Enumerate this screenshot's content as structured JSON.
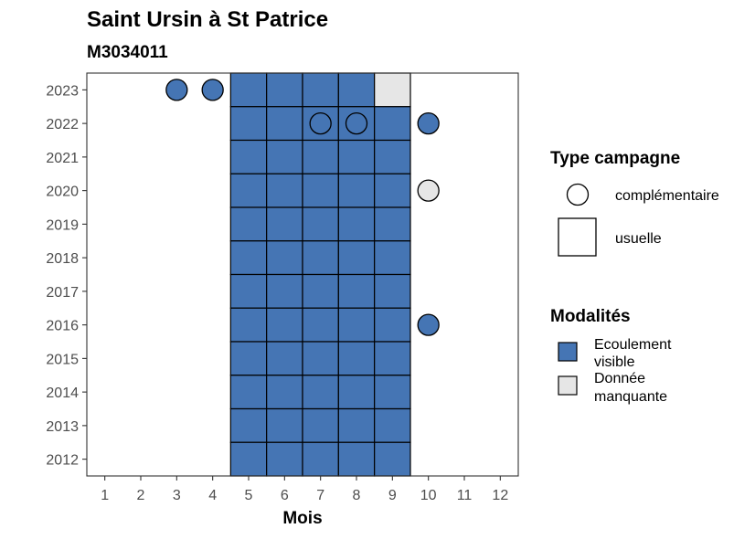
{
  "chart_data": {
    "type": "heatmap",
    "title": "Saint Ursin à St Patrice",
    "subtitle": "M3034011",
    "xlabel": "Mois",
    "ylabel": "",
    "x": [
      1,
      2,
      3,
      4,
      5,
      6,
      7,
      8,
      9,
      10,
      11,
      12
    ],
    "y": [
      2012,
      2013,
      2014,
      2015,
      2016,
      2017,
      2018,
      2019,
      2020,
      2021,
      2022,
      2023
    ],
    "xlim": [
      0.5,
      12.5
    ],
    "ylim": [
      2011.5,
      2023.5
    ],
    "grid": false,
    "legend_position": "right",
    "modalites": [
      {
        "key": "ecoulement",
        "label_lines": [
          "Ecoulement",
          "visible"
        ],
        "color": "#4575b4"
      },
      {
        "key": "manquante",
        "label_lines": [
          "Donnée",
          "manquante"
        ],
        "color": "#e6e6e6"
      }
    ],
    "type_campagne": [
      {
        "key": "complementaire",
        "label": "complémentaire",
        "shape": "circle"
      },
      {
        "key": "usuelle",
        "label": "usuelle",
        "shape": "square"
      }
    ],
    "legend_titles": {
      "type_campagne": "Type campagne",
      "modalites": "Modalités"
    },
    "observations": [
      {
        "year": 2023,
        "month": 3,
        "campagne": "complementaire",
        "modalite": "ecoulement"
      },
      {
        "year": 2023,
        "month": 4,
        "campagne": "complementaire",
        "modalite": "ecoulement"
      },
      {
        "year": 2023,
        "month": 5,
        "campagne": "usuelle",
        "modalite": "ecoulement"
      },
      {
        "year": 2023,
        "month": 6,
        "campagne": "usuelle",
        "modalite": "ecoulement"
      },
      {
        "year": 2023,
        "month": 7,
        "campagne": "usuelle",
        "modalite": "ecoulement"
      },
      {
        "year": 2023,
        "month": 8,
        "campagne": "usuelle",
        "modalite": "ecoulement"
      },
      {
        "year": 2023,
        "month": 9,
        "campagne": "usuelle",
        "modalite": "manquante"
      },
      {
        "year": 2022,
        "month": 5,
        "campagne": "usuelle",
        "modalite": "ecoulement"
      },
      {
        "year": 2022,
        "month": 6,
        "campagne": "usuelle",
        "modalite": "ecoulement"
      },
      {
        "year": 2022,
        "month": 7,
        "campagne": "usuelle",
        "modalite": "ecoulement"
      },
      {
        "year": 2022,
        "month": 8,
        "campagne": "usuelle",
        "modalite": "ecoulement"
      },
      {
        "year": 2022,
        "month": 9,
        "campagne": "usuelle",
        "modalite": "ecoulement"
      },
      {
        "year": 2022,
        "month": 7,
        "campagne": "complementaire",
        "modalite": "ecoulement"
      },
      {
        "year": 2022,
        "month": 8,
        "campagne": "complementaire",
        "modalite": "ecoulement"
      },
      {
        "year": 2022,
        "month": 10,
        "campagne": "complementaire",
        "modalite": "ecoulement"
      },
      {
        "year": 2021,
        "month": 5,
        "campagne": "usuelle",
        "modalite": "ecoulement"
      },
      {
        "year": 2021,
        "month": 6,
        "campagne": "usuelle",
        "modalite": "ecoulement"
      },
      {
        "year": 2021,
        "month": 7,
        "campagne": "usuelle",
        "modalite": "ecoulement"
      },
      {
        "year": 2021,
        "month": 8,
        "campagne": "usuelle",
        "modalite": "ecoulement"
      },
      {
        "year": 2021,
        "month": 9,
        "campagne": "usuelle",
        "modalite": "ecoulement"
      },
      {
        "year": 2020,
        "month": 5,
        "campagne": "usuelle",
        "modalite": "ecoulement"
      },
      {
        "year": 2020,
        "month": 6,
        "campagne": "usuelle",
        "modalite": "ecoulement"
      },
      {
        "year": 2020,
        "month": 7,
        "campagne": "usuelle",
        "modalite": "ecoulement"
      },
      {
        "year": 2020,
        "month": 8,
        "campagne": "usuelle",
        "modalite": "ecoulement"
      },
      {
        "year": 2020,
        "month": 9,
        "campagne": "usuelle",
        "modalite": "ecoulement"
      },
      {
        "year": 2020,
        "month": 10,
        "campagne": "complementaire",
        "modalite": "manquante"
      },
      {
        "year": 2019,
        "month": 5,
        "campagne": "usuelle",
        "modalite": "ecoulement"
      },
      {
        "year": 2019,
        "month": 6,
        "campagne": "usuelle",
        "modalite": "ecoulement"
      },
      {
        "year": 2019,
        "month": 7,
        "campagne": "usuelle",
        "modalite": "ecoulement"
      },
      {
        "year": 2019,
        "month": 8,
        "campagne": "usuelle",
        "modalite": "ecoulement"
      },
      {
        "year": 2019,
        "month": 9,
        "campagne": "usuelle",
        "modalite": "ecoulement"
      },
      {
        "year": 2018,
        "month": 5,
        "campagne": "usuelle",
        "modalite": "ecoulement"
      },
      {
        "year": 2018,
        "month": 6,
        "campagne": "usuelle",
        "modalite": "ecoulement"
      },
      {
        "year": 2018,
        "month": 7,
        "campagne": "usuelle",
        "modalite": "ecoulement"
      },
      {
        "year": 2018,
        "month": 8,
        "campagne": "usuelle",
        "modalite": "ecoulement"
      },
      {
        "year": 2018,
        "month": 9,
        "campagne": "usuelle",
        "modalite": "ecoulement"
      },
      {
        "year": 2017,
        "month": 5,
        "campagne": "usuelle",
        "modalite": "ecoulement"
      },
      {
        "year": 2017,
        "month": 6,
        "campagne": "usuelle",
        "modalite": "ecoulement"
      },
      {
        "year": 2017,
        "month": 7,
        "campagne": "usuelle",
        "modalite": "ecoulement"
      },
      {
        "year": 2017,
        "month": 8,
        "campagne": "usuelle",
        "modalite": "ecoulement"
      },
      {
        "year": 2017,
        "month": 9,
        "campagne": "usuelle",
        "modalite": "ecoulement"
      },
      {
        "year": 2016,
        "month": 5,
        "campagne": "usuelle",
        "modalite": "ecoulement"
      },
      {
        "year": 2016,
        "month": 6,
        "campagne": "usuelle",
        "modalite": "ecoulement"
      },
      {
        "year": 2016,
        "month": 7,
        "campagne": "usuelle",
        "modalite": "ecoulement"
      },
      {
        "year": 2016,
        "month": 8,
        "campagne": "usuelle",
        "modalite": "ecoulement"
      },
      {
        "year": 2016,
        "month": 9,
        "campagne": "usuelle",
        "modalite": "ecoulement"
      },
      {
        "year": 2016,
        "month": 10,
        "campagne": "complementaire",
        "modalite": "ecoulement"
      },
      {
        "year": 2015,
        "month": 5,
        "campagne": "usuelle",
        "modalite": "ecoulement"
      },
      {
        "year": 2015,
        "month": 6,
        "campagne": "usuelle",
        "modalite": "ecoulement"
      },
      {
        "year": 2015,
        "month": 7,
        "campagne": "usuelle",
        "modalite": "ecoulement"
      },
      {
        "year": 2015,
        "month": 8,
        "campagne": "usuelle",
        "modalite": "ecoulement"
      },
      {
        "year": 2015,
        "month": 9,
        "campagne": "usuelle",
        "modalite": "ecoulement"
      },
      {
        "year": 2014,
        "month": 5,
        "campagne": "usuelle",
        "modalite": "ecoulement"
      },
      {
        "year": 2014,
        "month": 6,
        "campagne": "usuelle",
        "modalite": "ecoulement"
      },
      {
        "year": 2014,
        "month": 7,
        "campagne": "usuelle",
        "modalite": "ecoulement"
      },
      {
        "year": 2014,
        "month": 8,
        "campagne": "usuelle",
        "modalite": "ecoulement"
      },
      {
        "year": 2014,
        "month": 9,
        "campagne": "usuelle",
        "modalite": "ecoulement"
      },
      {
        "year": 2013,
        "month": 5,
        "campagne": "usuelle",
        "modalite": "ecoulement"
      },
      {
        "year": 2013,
        "month": 6,
        "campagne": "usuelle",
        "modalite": "ecoulement"
      },
      {
        "year": 2013,
        "month": 7,
        "campagne": "usuelle",
        "modalite": "ecoulement"
      },
      {
        "year": 2013,
        "month": 8,
        "campagne": "usuelle",
        "modalite": "ecoulement"
      },
      {
        "year": 2013,
        "month": 9,
        "campagne": "usuelle",
        "modalite": "ecoulement"
      },
      {
        "year": 2012,
        "month": 5,
        "campagne": "usuelle",
        "modalite": "ecoulement"
      },
      {
        "year": 2012,
        "month": 6,
        "campagne": "usuelle",
        "modalite": "ecoulement"
      },
      {
        "year": 2012,
        "month": 7,
        "campagne": "usuelle",
        "modalite": "ecoulement"
      },
      {
        "year": 2012,
        "month": 8,
        "campagne": "usuelle",
        "modalite": "ecoulement"
      },
      {
        "year": 2012,
        "month": 9,
        "campagne": "usuelle",
        "modalite": "ecoulement"
      }
    ]
  }
}
